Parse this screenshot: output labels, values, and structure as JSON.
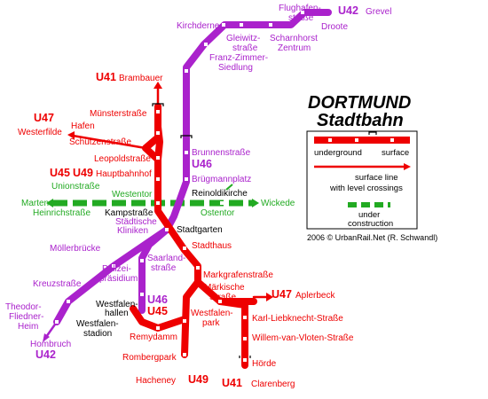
{
  "title": {
    "line1": "DORTMUND",
    "line2": "Stadtbahn"
  },
  "credit": "2006 © UrbanRail.Net (R. Schwandl)",
  "legend": {
    "underground": "underground",
    "surface": "surface",
    "surface_line_1": "surface line",
    "surface_line_2": "with level crossings",
    "construction_1": "under",
    "construction_2": "construction"
  },
  "line_labels": {
    "u42_grevel": "U42",
    "u41_brambauer": "U41",
    "u47_westerfilde": "U47",
    "u45": "U45",
    "u49": "U49",
    "u46_brunnen": "U46",
    "u46_south": "U46",
    "u45_south": "U45",
    "u47_aplerbeck": "U47",
    "u42_hombruch": "U42",
    "u49_hacheney": "U49",
    "u41_clarenberg": "U41"
  },
  "stations": {
    "grevel": "Grevel",
    "flughafenstrasse_1": "Flughafen-",
    "flughafenstrasse_2": "straße",
    "droote": "Droote",
    "kirchderne": "Kirchderne",
    "gleiwitz_1": "Gleiwitz-",
    "gleiwitz_2": "straße",
    "scharnhorst_1": "Scharnhorst",
    "scharnhorst_2": "Zentrum",
    "franz_1": "Franz-Zimmer-",
    "franz_2": "Siedlung",
    "brambauer": "Brambauer",
    "muensterstrasse": "Münsterstraße",
    "westerfilde": "Westerfilde",
    "hafen": "Hafen",
    "schuetzenstrasse": "Schützenstraße",
    "leopoldstrasse": "Leopoldstraße",
    "brunnenstrasse": "Brunnenstraße",
    "hauptbahnhof": "Hauptbahnhof",
    "bruegmannplatz": "Brügmannplatz",
    "unionstrasse": "Unionstraße",
    "westentor": "Westentor",
    "reinoldikirche": "Reinoldikirche",
    "marten": "Marten",
    "wickede": "Wickede",
    "heinrichstrasse": "Heinrichstraße",
    "kampstrasse": "Kampstraße",
    "ostentor": "Ostentor",
    "staedtische_1": "Städtische",
    "staedtische_2": "Kliniken",
    "stadtgarten": "Stadtgarten",
    "stadthaus": "Stadthaus",
    "moellerbruecke": "Möllerbrücke",
    "saarland_1": "Saarland-",
    "saarland_2": "straße",
    "polizei_1": "Polizei-",
    "polizei_2": "präsidium",
    "markgrafenstrasse": "Markgrafenstraße",
    "kreuzstrasse": "Kreuzstraße",
    "maerkische_1": "Märkische",
    "maerkische_2": "Straße",
    "aplerbeck": "Aplerbeck",
    "theodor_1": "Theodor-",
    "theodor_2": "Fliedner-",
    "theodor_3": "Heim",
    "wfhallen_1": "Westfalen-",
    "wfhallen_2": "hallen",
    "wfstadion_1": "Westfalen-",
    "wfstadion_2": "stadion",
    "wfpark_1": "Westfalen-",
    "wfpark_2": "park",
    "karl": "Karl-Liebknecht-Straße",
    "remydamm": "Remydamm",
    "willem": "Willem-van-Vloten-Straße",
    "hombruch": "Hombruch",
    "rombergpark": "Rombergpark",
    "hoerde": "Hörde",
    "hacheney": "Hacheney",
    "clarenberg": "Clarenberg"
  },
  "colors": {
    "red_line": "#ee0000",
    "purple_line": "#aa22cc",
    "green_line": "#22aa22"
  }
}
